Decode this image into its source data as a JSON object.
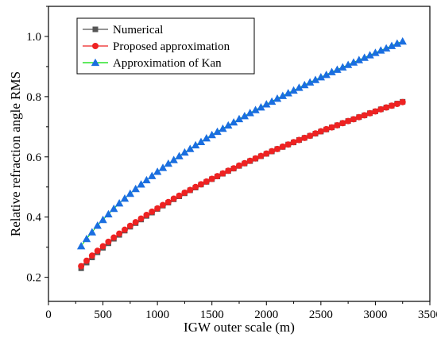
{
  "chart_data": {
    "type": "scatter",
    "xlabel": "IGW outer scale (m)",
    "ylabel": "Relative refraction angle RMS",
    "xlim": [
      0,
      3500
    ],
    "ylim": [
      0.12,
      1.1
    ],
    "xticks": [
      0,
      500,
      1000,
      1500,
      2000,
      2500,
      3000,
      3500
    ],
    "yticks": [
      0.2,
      0.4,
      0.6,
      0.8,
      1.0
    ],
    "xtick_labels": [
      "0",
      "500",
      "1000",
      "1500",
      "2000",
      "2500",
      "3000",
      "3500"
    ],
    "ytick_labels": [
      "0.2",
      "0.4",
      "0.6",
      "0.8",
      "1.0"
    ],
    "grid": false,
    "legend_position": "top-left",
    "x": [
      300,
      350,
      400,
      450,
      500,
      550,
      600,
      650,
      700,
      750,
      800,
      850,
      900,
      950,
      1000,
      1050,
      1100,
      1150,
      1200,
      1250,
      1300,
      1350,
      1400,
      1450,
      1500,
      1550,
      1600,
      1650,
      1700,
      1750,
      1800,
      1850,
      1900,
      1950,
      2000,
      2050,
      2100,
      2150,
      2200,
      2250,
      2300,
      2350,
      2400,
      2450,
      2500,
      2550,
      2600,
      2650,
      2700,
      2750,
      2800,
      2850,
      2900,
      2950,
      3000,
      3050,
      3100,
      3150,
      3200,
      3250
    ],
    "series": [
      {
        "name": "Numerical",
        "marker": "square",
        "color": "#555555",
        "values": [
          0.23,
          0.249,
          0.266,
          0.283,
          0.298,
          0.313,
          0.328,
          0.341,
          0.355,
          0.368,
          0.38,
          0.392,
          0.404,
          0.415,
          0.427,
          0.438,
          0.448,
          0.459,
          0.469,
          0.479,
          0.489,
          0.498,
          0.508,
          0.517,
          0.526,
          0.535,
          0.544,
          0.553,
          0.561,
          0.57,
          0.578,
          0.586,
          0.594,
          0.602,
          0.61,
          0.618,
          0.626,
          0.633,
          0.641,
          0.648,
          0.656,
          0.663,
          0.67,
          0.677,
          0.684,
          0.691,
          0.698,
          0.705,
          0.712,
          0.719,
          0.725,
          0.732,
          0.738,
          0.745,
          0.751,
          0.758,
          0.764,
          0.77,
          0.777,
          0.783
        ]
      },
      {
        "name": "Proposed approximation",
        "marker": "circle",
        "color": "#ee2222",
        "values": [
          0.237,
          0.255,
          0.272,
          0.288,
          0.303,
          0.318,
          0.332,
          0.345,
          0.358,
          0.371,
          0.383,
          0.395,
          0.407,
          0.418,
          0.429,
          0.44,
          0.45,
          0.461,
          0.471,
          0.481,
          0.49,
          0.5,
          0.509,
          0.518,
          0.527,
          0.536,
          0.545,
          0.554,
          0.562,
          0.571,
          0.579,
          0.587,
          0.595,
          0.603,
          0.611,
          0.619,
          0.626,
          0.634,
          0.641,
          0.649,
          0.656,
          0.663,
          0.67,
          0.678,
          0.685,
          0.692,
          0.698,
          0.705,
          0.712,
          0.719,
          0.725,
          0.732,
          0.738,
          0.745,
          0.751,
          0.758,
          0.764,
          0.77,
          0.776,
          0.782
        ]
      },
      {
        "name": "Approximation of Kan",
        "marker": "triangle",
        "color": "#1a6ee0",
        "line_color": "#00dd00",
        "values": [
          0.304,
          0.328,
          0.35,
          0.372,
          0.391,
          0.41,
          0.428,
          0.446,
          0.462,
          0.478,
          0.494,
          0.509,
          0.523,
          0.537,
          0.551,
          0.564,
          0.578,
          0.59,
          0.603,
          0.615,
          0.627,
          0.639,
          0.65,
          0.662,
          0.673,
          0.684,
          0.694,
          0.705,
          0.715,
          0.726,
          0.736,
          0.746,
          0.756,
          0.765,
          0.775,
          0.784,
          0.794,
          0.803,
          0.812,
          0.821,
          0.83,
          0.839,
          0.848,
          0.856,
          0.865,
          0.873,
          0.882,
          0.89,
          0.898,
          0.906,
          0.914,
          0.922,
          0.93,
          0.938,
          0.946,
          0.954,
          0.961,
          0.969,
          0.977,
          0.984
        ]
      }
    ]
  }
}
